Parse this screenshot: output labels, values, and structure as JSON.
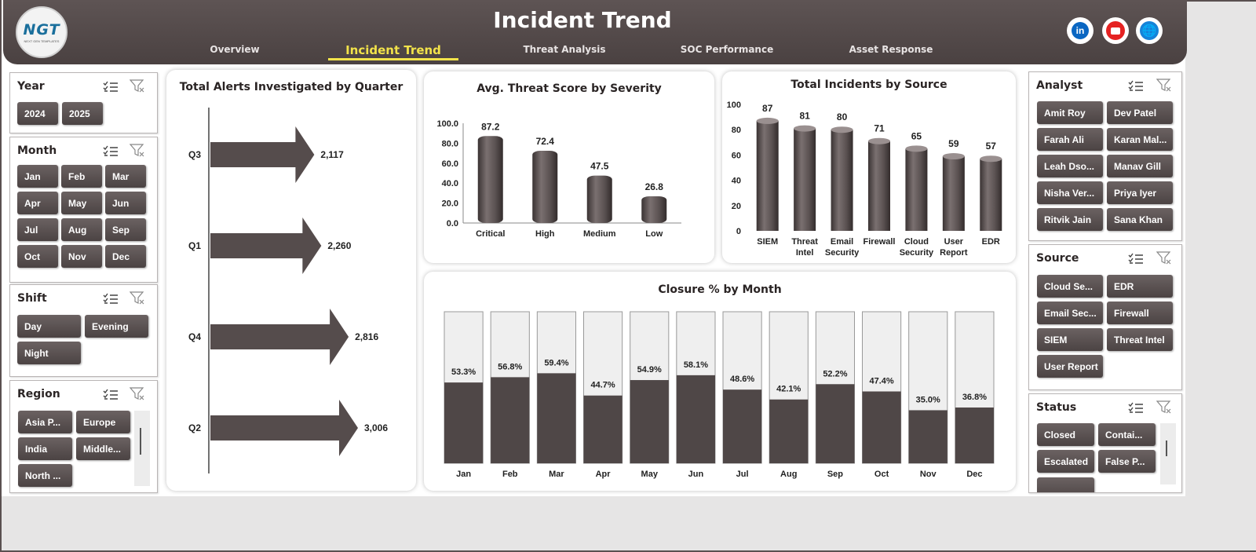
{
  "header": {
    "title": "Incident Trend",
    "logo_text": "NGT",
    "logo_sub": "NEXT GEN TEMPLATES",
    "tabs": [
      {
        "label": "Overview",
        "active": false
      },
      {
        "label": "Incident Trend",
        "active": true
      },
      {
        "label": "Threat Analysis",
        "active": false
      },
      {
        "label": "SOC Performance",
        "active": false
      },
      {
        "label": "Asset Response",
        "active": false
      }
    ],
    "social": [
      {
        "icon": "linkedin-icon",
        "glyph": "in"
      },
      {
        "icon": "youtube-icon",
        "glyph": ""
      },
      {
        "icon": "globe-icon",
        "glyph": "🌐"
      }
    ]
  },
  "slicers": {
    "year": {
      "title": "Year",
      "items": [
        "2024",
        "2025"
      ]
    },
    "month": {
      "title": "Month",
      "items": [
        "Jan",
        "Feb",
        "Mar",
        "Apr",
        "May",
        "Jun",
        "Jul",
        "Aug",
        "Sep",
        "Oct",
        "Nov",
        "Dec"
      ]
    },
    "shift": {
      "title": "Shift",
      "items": [
        "Day",
        "Evening",
        "Night"
      ]
    },
    "region": {
      "title": "Region",
      "items": [
        "Asia P...",
        "Europe",
        "India",
        "Middle...",
        "North ..."
      ]
    },
    "analyst": {
      "title": "Analyst",
      "items": [
        "Amit Roy",
        "Dev Patel",
        "Farah Ali",
        "Karan Mal...",
        "Leah Dso...",
        "Manav Gill",
        "Nisha Ver...",
        "Priya Iyer",
        "Ritvik Jain",
        "Sana Khan"
      ]
    },
    "source": {
      "title": "Source",
      "items": [
        "Cloud Se...",
        "EDR",
        "Email Sec...",
        "Firewall",
        "SIEM",
        "Threat Intel",
        "User Report"
      ]
    },
    "status": {
      "title": "Status",
      "items": [
        "Closed",
        "Contai...",
        "Escalated",
        "False P..."
      ]
    }
  },
  "chart_data": [
    {
      "type": "bar",
      "orientation": "horizontal",
      "title": "Total Alerts Investigated by Quarter",
      "categories": [
        "Q3",
        "Q1",
        "Q4",
        "Q2"
      ],
      "values": [
        2117,
        2260,
        2816,
        3006
      ],
      "labels": [
        "2,117",
        "2,260",
        "2,816",
        "3,006"
      ],
      "grid": false
    },
    {
      "type": "bar",
      "title": "Avg. Threat Score by Severity",
      "categories": [
        "Critical",
        "High",
        "Medium",
        "Low"
      ],
      "values": [
        87.2,
        72.4,
        47.5,
        26.8
      ],
      "ylim": [
        0,
        100
      ],
      "yticks": [
        "0.0",
        "20.0",
        "40.0",
        "60.0",
        "80.0",
        "100.0"
      ],
      "grid": false
    },
    {
      "type": "bar",
      "title": "Total Incidents by Source",
      "categories": [
        "SIEM",
        "Threat Intel",
        "Email Security",
        "Firewall",
        "Cloud Security",
        "User Report",
        "EDR"
      ],
      "values": [
        87,
        81,
        80,
        71,
        65,
        59,
        57
      ],
      "ylim": [
        0,
        100
      ],
      "yticks": [
        "0",
        "20",
        "40",
        "60",
        "80",
        "100"
      ],
      "grid": false
    },
    {
      "type": "bar",
      "stacked": "100%",
      "title": "Closure  % by Month",
      "categories": [
        "Jan",
        "Feb",
        "Mar",
        "Apr",
        "May",
        "Jun",
        "Jul",
        "Aug",
        "Sep",
        "Oct",
        "Nov",
        "Dec"
      ],
      "values": [
        53.3,
        56.8,
        59.4,
        44.7,
        54.9,
        58.1,
        48.6,
        42.1,
        52.2,
        47.4,
        35.0,
        36.8
      ],
      "labels": [
        "53.3%",
        "56.8%",
        "59.4%",
        "44.7%",
        "54.9%",
        "58.1%",
        "48.6%",
        "42.1%",
        "52.2%",
        "47.4%",
        "35.0%",
        "36.8%"
      ],
      "ylim": [
        0,
        100
      ],
      "grid": false
    }
  ],
  "colors": {
    "bar_dark": "#4e4646",
    "bar_mid": "#6a6161",
    "track": "#efefef",
    "accent": "#f2e34a"
  }
}
